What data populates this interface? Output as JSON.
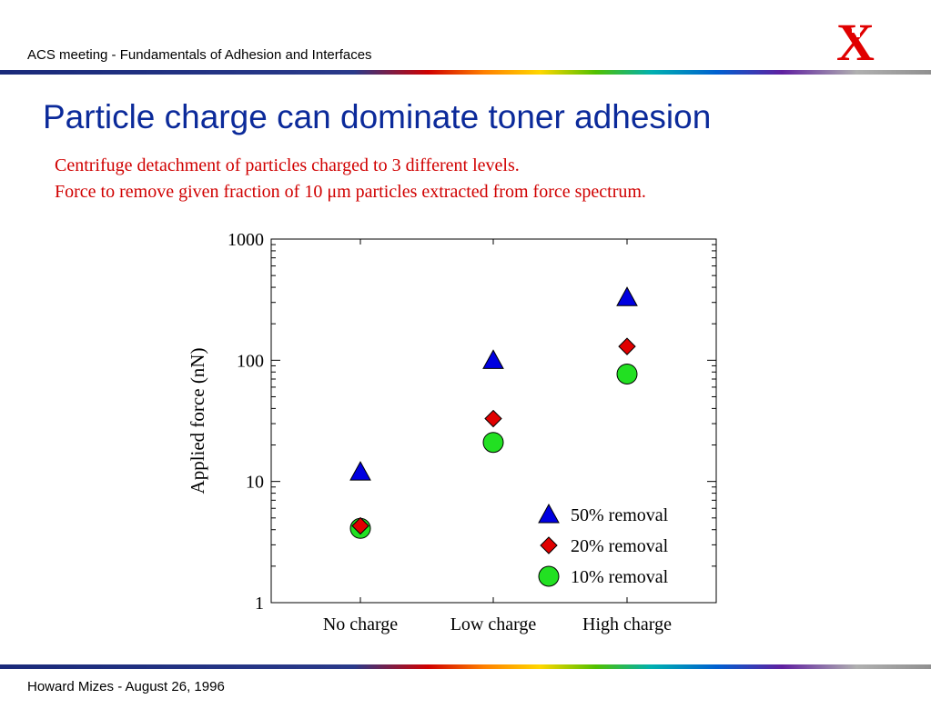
{
  "header": {
    "text": "ACS meeting - Fundamentals of Adhesion and Interfaces",
    "logo_text": "X",
    "logo_color": "#e00000"
  },
  "slide": {
    "title": "Particle charge can dominate toner adhesion",
    "subtitle_line1": "Centrifuge detachment of particles charged to 3 different levels.",
    "subtitle_line2": "Force to remove given fraction of 10 μm particles extracted from force spectrum."
  },
  "footer": {
    "text": "Howard Mizes - August 26, 1996"
  },
  "chart_data": {
    "type": "scatter",
    "categories": [
      "No charge",
      "Low charge",
      "High charge"
    ],
    "ylabel": "Applied force (nN)",
    "xlabel": "",
    "yscale": "log",
    "ylim": [
      1,
      1000
    ],
    "yticks": [
      "1",
      "10",
      "100",
      "1000"
    ],
    "grid": false,
    "legend_position": "bottom-right",
    "series": [
      {
        "name": "50% removal",
        "marker": "triangle",
        "color": "#0000e0",
        "values": [
          12,
          100,
          330
        ]
      },
      {
        "name": "20% removal",
        "marker": "diamond",
        "color": "#e00000",
        "values": [
          4.3,
          33,
          130
        ]
      },
      {
        "name": "10% removal",
        "marker": "circle",
        "color": "#22e022",
        "values": [
          4.1,
          21,
          77
        ]
      }
    ]
  }
}
